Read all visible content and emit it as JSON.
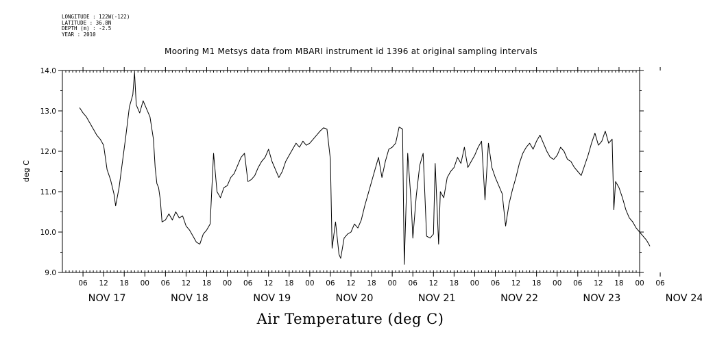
{
  "header": {
    "longitude": "LONGITUDE : 122W(-122)",
    "latitude": "LATITUDE : 36.8N",
    "depth": "DEPTH (m) : -2.5",
    "year": "YEAR : 2010"
  },
  "chart_data": {
    "type": "line",
    "title": "Mooring M1 Metsys data from MBARI instrument id 1396 at original sampling intervals",
    "xlabel": "Air Temperature (deg C)",
    "ylabel": "deg C",
    "ylim": [
      9.0,
      14.0
    ],
    "xlim_hours": [
      0,
      168
    ],
    "y_ticks": [
      "9.0",
      "10.0",
      "11.0",
      "12.0",
      "13.0",
      "14.0"
    ],
    "x_hour_ticks": [
      "06",
      "12",
      "18",
      "00",
      "06",
      "12",
      "18",
      "00",
      "06",
      "12",
      "18",
      "00",
      "06",
      "12",
      "18",
      "00",
      "06",
      "12",
      "18",
      "00",
      "06",
      "12",
      "18",
      "00",
      "06",
      "12",
      "18",
      "00",
      "06"
    ],
    "x_day_labels": [
      "NOV 17",
      "NOV 18",
      "NOV 19",
      "NOV 20",
      "NOV 21",
      "NOV 22",
      "NOV 23",
      "NOV 24"
    ],
    "grid": false,
    "series": [
      {
        "points": [
          [
            "2010-11-17 05:00",
            13.08
          ],
          [
            "2010-11-17 06:00",
            12.95
          ],
          [
            "2010-11-17 07:00",
            12.85
          ],
          [
            "2010-11-17 08:00",
            12.7
          ],
          [
            "2010-11-17 09:00",
            12.55
          ],
          [
            "2010-11-17 10:00",
            12.4
          ],
          [
            "2010-11-17 11:00",
            12.3
          ],
          [
            "2010-11-17 12:00",
            12.15
          ],
          [
            "2010-11-17 13:00",
            11.55
          ],
          [
            "2010-11-17 14:00",
            11.3
          ],
          [
            "2010-11-17 15:00",
            10.95
          ],
          [
            "2010-11-17 15:30",
            10.65
          ],
          [
            "2010-11-17 16:30",
            11.1
          ],
          [
            "2010-11-17 17:30",
            11.75
          ],
          [
            "2010-11-17 18:30",
            12.4
          ],
          [
            "2010-11-17 19:30",
            13.1
          ],
          [
            "2010-11-17 20:30",
            13.4
          ],
          [
            "2010-11-17 21:00",
            13.95
          ],
          [
            "2010-11-17 21:30",
            13.15
          ],
          [
            "2010-11-17 22:30",
            12.95
          ],
          [
            "2010-11-17 23:30",
            13.25
          ],
          [
            "2010-11-18 00:30",
            13.05
          ],
          [
            "2010-11-18 01:30",
            12.85
          ],
          [
            "2010-11-18 02:30",
            12.3
          ],
          [
            "2010-11-18 03:00",
            11.6
          ],
          [
            "2010-11-18 03:30",
            11.2
          ],
          [
            "2010-11-18 04:00",
            11.1
          ],
          [
            "2010-11-18 04:30",
            10.8
          ],
          [
            "2010-11-18 05:00",
            10.25
          ],
          [
            "2010-11-18 06:00",
            10.3
          ],
          [
            "2010-11-18 07:00",
            10.45
          ],
          [
            "2010-11-18 08:00",
            10.3
          ],
          [
            "2010-11-18 09:00",
            10.5
          ],
          [
            "2010-11-18 10:00",
            10.35
          ],
          [
            "2010-11-18 11:00",
            10.4
          ],
          [
            "2010-11-18 12:00",
            10.15
          ],
          [
            "2010-11-18 13:00",
            10.05
          ],
          [
            "2010-11-18 14:00",
            9.9
          ],
          [
            "2010-11-18 15:00",
            9.75
          ],
          [
            "2010-11-18 16:00",
            9.7
          ],
          [
            "2010-11-18 17:00",
            9.95
          ],
          [
            "2010-11-18 18:00",
            10.05
          ],
          [
            "2010-11-18 19:00",
            10.2
          ],
          [
            "2010-11-18 20:00",
            11.95
          ],
          [
            "2010-11-18 21:00",
            11.0
          ],
          [
            "2010-11-18 22:00",
            10.85
          ],
          [
            "2010-11-18 23:00",
            11.1
          ],
          [
            "2010-11-19 00:00",
            11.15
          ],
          [
            "2010-11-19 01:00",
            11.35
          ],
          [
            "2010-11-19 02:00",
            11.45
          ],
          [
            "2010-11-19 03:00",
            11.65
          ],
          [
            "2010-11-19 04:00",
            11.85
          ],
          [
            "2010-11-19 05:00",
            11.95
          ],
          [
            "2010-11-19 06:00",
            11.25
          ],
          [
            "2010-11-19 07:00",
            11.3
          ],
          [
            "2010-11-19 08:00",
            11.4
          ],
          [
            "2010-11-19 09:00",
            11.6
          ],
          [
            "2010-11-19 10:00",
            11.75
          ],
          [
            "2010-11-19 11:00",
            11.85
          ],
          [
            "2010-11-19 12:00",
            12.05
          ],
          [
            "2010-11-19 13:00",
            11.75
          ],
          [
            "2010-11-19 14:00",
            11.55
          ],
          [
            "2010-11-19 15:00",
            11.35
          ],
          [
            "2010-11-19 16:00",
            11.5
          ],
          [
            "2010-11-19 17:00",
            11.75
          ],
          [
            "2010-11-19 18:00",
            11.9
          ],
          [
            "2010-11-19 19:00",
            12.05
          ],
          [
            "2010-11-19 20:00",
            12.2
          ],
          [
            "2010-11-19 21:00",
            12.1
          ],
          [
            "2010-11-19 22:00",
            12.25
          ],
          [
            "2010-11-19 23:00",
            12.15
          ],
          [
            "2010-11-20 00:00",
            12.2
          ],
          [
            "2010-11-20 01:00",
            12.3
          ],
          [
            "2010-11-20 02:00",
            12.4
          ],
          [
            "2010-11-20 03:00",
            12.5
          ],
          [
            "2010-11-20 04:00",
            12.58
          ],
          [
            "2010-11-20 05:00",
            12.55
          ],
          [
            "2010-11-20 06:00",
            11.8
          ],
          [
            "2010-11-20 06:30",
            9.6
          ],
          [
            "2010-11-20 07:30",
            10.25
          ],
          [
            "2010-11-20 08:30",
            9.45
          ],
          [
            "2010-11-20 09:00",
            9.35
          ],
          [
            "2010-11-20 10:00",
            9.85
          ],
          [
            "2010-11-20 11:00",
            9.95
          ],
          [
            "2010-11-20 12:00",
            10.0
          ],
          [
            "2010-11-20 13:00",
            10.2
          ],
          [
            "2010-11-20 14:00",
            10.1
          ],
          [
            "2010-11-20 15:00",
            10.3
          ],
          [
            "2010-11-20 16:00",
            10.65
          ],
          [
            "2010-11-20 17:00",
            10.95
          ],
          [
            "2010-11-20 18:00",
            11.25
          ],
          [
            "2010-11-20 19:00",
            11.55
          ],
          [
            "2010-11-20 20:00",
            11.85
          ],
          [
            "2010-11-20 21:00",
            11.35
          ],
          [
            "2010-11-20 22:00",
            11.75
          ],
          [
            "2010-11-20 23:00",
            12.05
          ],
          [
            "2010-11-21 00:00",
            12.1
          ],
          [
            "2010-11-21 01:00",
            12.2
          ],
          [
            "2010-11-21 02:00",
            12.6
          ],
          [
            "2010-11-21 03:00",
            12.55
          ],
          [
            "2010-11-21 03:30",
            9.2
          ],
          [
            "2010-11-21 04:30",
            11.95
          ],
          [
            "2010-11-21 05:30",
            10.75
          ],
          [
            "2010-11-21 06:00",
            9.85
          ],
          [
            "2010-11-21 07:00",
            10.9
          ],
          [
            "2010-11-21 08:00",
            11.65
          ],
          [
            "2010-11-21 09:00",
            11.95
          ],
          [
            "2010-11-21 10:00",
            9.9
          ],
          [
            "2010-11-21 11:00",
            9.85
          ],
          [
            "2010-11-21 12:00",
            9.95
          ],
          [
            "2010-11-21 12:30",
            11.7
          ],
          [
            "2010-11-21 13:30",
            9.7
          ],
          [
            "2010-11-21 14:00",
            11.0
          ],
          [
            "2010-11-21 15:00",
            10.85
          ],
          [
            "2010-11-21 16:00",
            11.35
          ],
          [
            "2010-11-21 17:00",
            11.5
          ],
          [
            "2010-11-21 18:00",
            11.6
          ],
          [
            "2010-11-21 19:00",
            11.85
          ],
          [
            "2010-11-21 20:00",
            11.7
          ],
          [
            "2010-11-21 21:00",
            12.1
          ],
          [
            "2010-11-21 22:00",
            11.6
          ],
          [
            "2010-11-21 23:00",
            11.75
          ],
          [
            "2010-11-22 00:00",
            11.9
          ],
          [
            "2010-11-22 01:00",
            12.1
          ],
          [
            "2010-11-22 02:00",
            12.25
          ],
          [
            "2010-11-22 03:00",
            10.8
          ],
          [
            "2010-11-22 04:00",
            12.2
          ],
          [
            "2010-11-22 05:00",
            11.6
          ],
          [
            "2010-11-22 06:00",
            11.35
          ],
          [
            "2010-11-22 07:00",
            11.15
          ],
          [
            "2010-11-22 08:00",
            10.95
          ],
          [
            "2010-11-22 09:00",
            10.15
          ],
          [
            "2010-11-22 10:00",
            10.7
          ],
          [
            "2010-11-22 11:00",
            11.05
          ],
          [
            "2010-11-22 12:00",
            11.35
          ],
          [
            "2010-11-22 13:00",
            11.7
          ],
          [
            "2010-11-22 14:00",
            11.95
          ],
          [
            "2010-11-22 15:00",
            12.1
          ],
          [
            "2010-11-22 16:00",
            12.2
          ],
          [
            "2010-11-22 17:00",
            12.05
          ],
          [
            "2010-11-22 18:00",
            12.25
          ],
          [
            "2010-11-22 19:00",
            12.4
          ],
          [
            "2010-11-22 20:00",
            12.2
          ],
          [
            "2010-11-22 21:00",
            12.0
          ],
          [
            "2010-11-22 22:00",
            11.85
          ],
          [
            "2010-11-22 23:00",
            11.8
          ],
          [
            "2010-11-23 00:00",
            11.9
          ],
          [
            "2010-11-23 01:00",
            12.1
          ],
          [
            "2010-11-23 02:00",
            12.0
          ],
          [
            "2010-11-23 03:00",
            11.8
          ],
          [
            "2010-11-23 04:00",
            11.75
          ],
          [
            "2010-11-23 05:00",
            11.6
          ],
          [
            "2010-11-23 06:00",
            11.5
          ],
          [
            "2010-11-23 07:00",
            11.4
          ],
          [
            "2010-11-23 08:00",
            11.65
          ],
          [
            "2010-11-23 09:00",
            11.9
          ],
          [
            "2010-11-23 10:00",
            12.2
          ],
          [
            "2010-11-23 11:00",
            12.45
          ],
          [
            "2010-11-23 12:00",
            12.15
          ],
          [
            "2010-11-23 13:00",
            12.25
          ],
          [
            "2010-11-23 14:00",
            12.5
          ],
          [
            "2010-11-23 15:00",
            12.2
          ],
          [
            "2010-11-23 16:00",
            12.3
          ],
          [
            "2010-11-23 16:30",
            10.55
          ],
          [
            "2010-11-23 17:00",
            11.25
          ],
          [
            "2010-11-23 18:00",
            11.1
          ],
          [
            "2010-11-23 19:00",
            10.85
          ],
          [
            "2010-11-23 20:00",
            10.55
          ],
          [
            "2010-11-23 21:00",
            10.35
          ],
          [
            "2010-11-23 22:00",
            10.25
          ],
          [
            "2010-11-23 23:00",
            10.1
          ],
          [
            "2010-11-24 00:00",
            10.0
          ],
          [
            "2010-11-24 01:00",
            9.9
          ],
          [
            "2010-11-24 02:00",
            9.8
          ],
          [
            "2010-11-24 03:00",
            9.65
          ]
        ]
      }
    ]
  }
}
